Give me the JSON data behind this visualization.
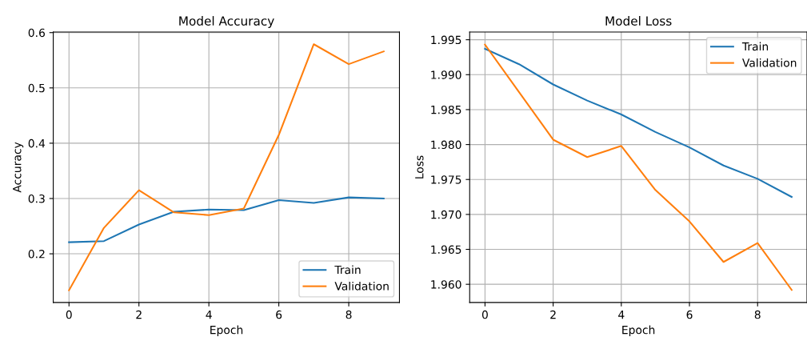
{
  "chart_data": [
    {
      "type": "line",
      "title": "Model Accuracy",
      "xlabel": "Epoch",
      "ylabel": "Accuracy",
      "x": [
        0,
        1,
        2,
        3,
        4,
        5,
        6,
        7,
        8,
        9
      ],
      "series": [
        {
          "name": "Train",
          "color": "#1f77b4",
          "values": [
            0.221,
            0.223,
            0.253,
            0.276,
            0.28,
            0.279,
            0.297,
            0.292,
            0.302,
            0.3
          ]
        },
        {
          "name": "Validation",
          "color": "#ff7f0e",
          "values": [
            0.134,
            0.247,
            0.315,
            0.275,
            0.27,
            0.282,
            0.415,
            0.579,
            0.543,
            0.566
          ]
        }
      ],
      "xlim": [
        -0.45,
        9.45
      ],
      "xticks": [
        0,
        2,
        4,
        6,
        8
      ],
      "ylim": [
        0.112,
        0.601
      ],
      "yticks": [
        0.2,
        0.3,
        0.4,
        0.5,
        0.6
      ],
      "grid": true,
      "legend": "bottom right"
    },
    {
      "type": "line",
      "title": "Model Loss",
      "xlabel": "Epoch",
      "ylabel": "Loss",
      "x": [
        0,
        1,
        2,
        3,
        4,
        5,
        6,
        7,
        8,
        9
      ],
      "series": [
        {
          "name": "Train",
          "color": "#1f77b4",
          "values": [
            1.9937,
            1.9915,
            1.9886,
            1.9863,
            1.9843,
            1.9818,
            1.9796,
            1.977,
            1.9751,
            1.9725
          ]
        },
        {
          "name": "Validation",
          "color": "#ff7f0e",
          "values": [
            1.9943,
            1.9875,
            1.9807,
            1.9782,
            1.9798,
            1.9735,
            1.969,
            1.9632,
            1.9659,
            1.9592
          ]
        }
      ],
      "xlim": [
        -0.45,
        9.45
      ],
      "xticks": [
        0,
        2,
        4,
        6,
        8
      ],
      "ylim": [
        1.9574,
        1.9961
      ],
      "yticks": [
        {
          "value": 1.96,
          "label": "1.960"
        },
        {
          "value": 1.965,
          "label": "1.965"
        },
        {
          "value": 1.97,
          "label": "1.970"
        },
        {
          "value": 1.975,
          "label": "1.975"
        },
        {
          "value": 1.98,
          "label": "1.980"
        },
        {
          "value": 1.985,
          "label": "1.985"
        },
        {
          "value": 1.99,
          "label": "1.990"
        },
        {
          "value": 1.995,
          "label": "1.995"
        }
      ],
      "grid": true,
      "legend": "top right"
    }
  ]
}
